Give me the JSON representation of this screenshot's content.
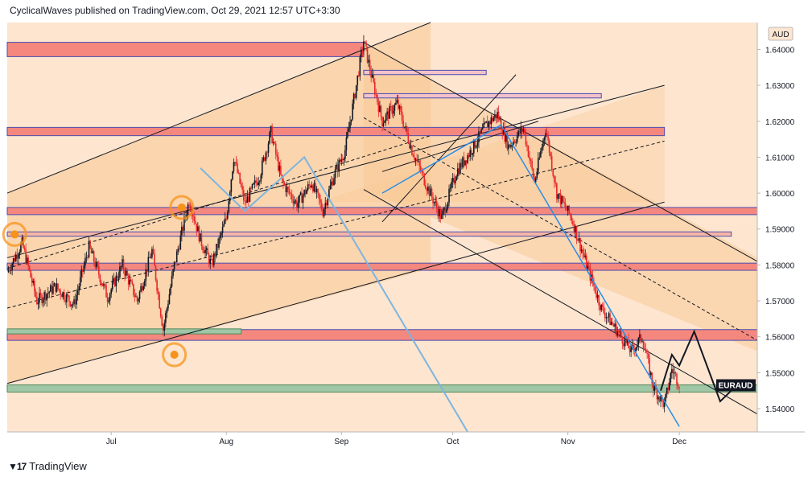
{
  "header": {
    "publisher": "CyclicalWaves published on TradingView.com, Oct 29, 2021 12:57 UTC+3:30"
  },
  "footer": {
    "brand": "TradingView",
    "logo_icon": "tradingview-logo-icon"
  },
  "colors": {
    "background": "#fde5cf",
    "channel_fill": "#f8c893",
    "zone_red": "#f4877e",
    "zone_green": "#9fc7a6",
    "candle_up": "#131722",
    "candle_down": "#e8272a",
    "blue_path": "#2a8ee6",
    "orange_marker": "#f7931a"
  },
  "chart_data": {
    "type": "candlestick",
    "symbol": "EURAUD",
    "currency": "AUD",
    "last_price": 1.5466,
    "x_ticks": [
      "Jul",
      "Aug",
      "Sep",
      "Oct",
      "Nov",
      "Dec"
    ],
    "y_ticks": [
      "1.64000",
      "1.63000",
      "1.62000",
      "1.61000",
      "1.60000",
      "1.59000",
      "1.58000",
      "1.57000",
      "1.56000",
      "1.55000",
      "1.54000"
    ],
    "ylim": [
      1.5335,
      1.6475
    ],
    "x_range": [
      "2021-06-03",
      "2021-12-22"
    ],
    "price_path": [
      [
        "2021-06-03",
        1.578
      ],
      [
        "2021-06-07",
        1.586
      ],
      [
        "2021-06-11",
        1.57
      ],
      [
        "2021-06-16",
        1.574
      ],
      [
        "2021-06-21",
        1.569
      ],
      [
        "2021-06-25",
        1.585
      ],
      [
        "2021-06-30",
        1.571
      ],
      [
        "2021-07-04",
        1.58
      ],
      [
        "2021-07-08",
        1.57
      ],
      [
        "2021-07-12",
        1.584
      ],
      [
        "2021-07-15",
        1.562
      ],
      [
        "2021-07-18",
        1.58
      ],
      [
        "2021-07-22",
        1.598
      ],
      [
        "2021-07-25",
        1.587
      ],
      [
        "2021-07-28",
        1.58
      ],
      [
        "2021-08-01",
        1.593
      ],
      [
        "2021-08-03",
        1.61
      ],
      [
        "2021-08-06",
        1.597
      ],
      [
        "2021-08-10",
        1.605
      ],
      [
        "2021-08-13",
        1.617
      ],
      [
        "2021-08-16",
        1.603
      ],
      [
        "2021-08-20",
        1.597
      ],
      [
        "2021-08-24",
        1.603
      ],
      [
        "2021-08-27",
        1.595
      ],
      [
        "2021-08-30",
        1.605
      ],
      [
        "2021-09-02",
        1.612
      ],
      [
        "2021-09-05",
        1.63
      ],
      [
        "2021-09-07",
        1.6425
      ],
      [
        "2021-09-09",
        1.633
      ],
      [
        "2021-09-12",
        1.62
      ],
      [
        "2021-09-16",
        1.625
      ],
      [
        "2021-09-20",
        1.612
      ],
      [
        "2021-09-24",
        1.602
      ],
      [
        "2021-09-28",
        1.593
      ],
      [
        "2021-10-02",
        1.606
      ],
      [
        "2021-10-06",
        1.612
      ],
      [
        "2021-10-10",
        1.619
      ],
      [
        "2021-10-13",
        1.622
      ],
      [
        "2021-10-16",
        1.613
      ],
      [
        "2021-10-20",
        1.618
      ],
      [
        "2021-10-23",
        1.603
      ],
      [
        "2021-10-26",
        1.618
      ],
      [
        "2021-10-29",
        1.6
      ],
      [
        "2021-11-02",
        1.593
      ],
      [
        "2021-11-06",
        1.58
      ],
      [
        "2021-11-10",
        1.568
      ],
      [
        "2021-11-14",
        1.562
      ],
      [
        "2021-11-18",
        1.556
      ],
      [
        "2021-11-21",
        1.56
      ],
      [
        "2021-11-24",
        1.546
      ],
      [
        "2021-11-27",
        1.541
      ],
      [
        "2021-11-29",
        1.551
      ],
      [
        "2021-12-01",
        1.547
      ]
    ],
    "horizontal_zones": [
      {
        "from": "2021-06-03",
        "to": "2021-09-07",
        "low": 1.638,
        "high": 1.642,
        "color": "red"
      },
      {
        "from": "2021-09-07",
        "to": "2021-10-10",
        "low": 1.633,
        "high": 1.6342,
        "color": "lavender"
      },
      {
        "from": "2021-09-07",
        "to": "2021-11-10",
        "low": 1.6265,
        "high": 1.6277,
        "color": "lavender"
      },
      {
        "from": "2021-06-03",
        "to": "2021-11-27",
        "low": 1.616,
        "high": 1.6183,
        "color": "red"
      },
      {
        "from": "2021-06-03",
        "to": "2021-12-24",
        "low": 1.594,
        "high": 1.596,
        "color": "red"
      },
      {
        "from": "2021-06-03",
        "to": "2021-12-15",
        "low": 1.588,
        "high": 1.5892,
        "color": "red-light"
      },
      {
        "from": "2021-06-03",
        "to": "2022-01-15",
        "low": 1.5785,
        "high": 1.5805,
        "color": "red"
      },
      {
        "from": "2021-06-03",
        "to": "2022-01-05",
        "low": 1.559,
        "high": 1.562,
        "color": "red"
      },
      {
        "from": "2021-06-03",
        "to": "2021-08-05",
        "low": 1.5608,
        "high": 1.5622,
        "color": "green"
      },
      {
        "from": "2021-06-03",
        "to": "2022-01-15",
        "low": 1.5446,
        "high": 1.5466,
        "color": "green"
      }
    ],
    "annotations": [
      "orange-target-markers",
      "blue-projection-paths",
      "black-projection-path",
      "rising-channel",
      "falling-channel"
    ]
  }
}
